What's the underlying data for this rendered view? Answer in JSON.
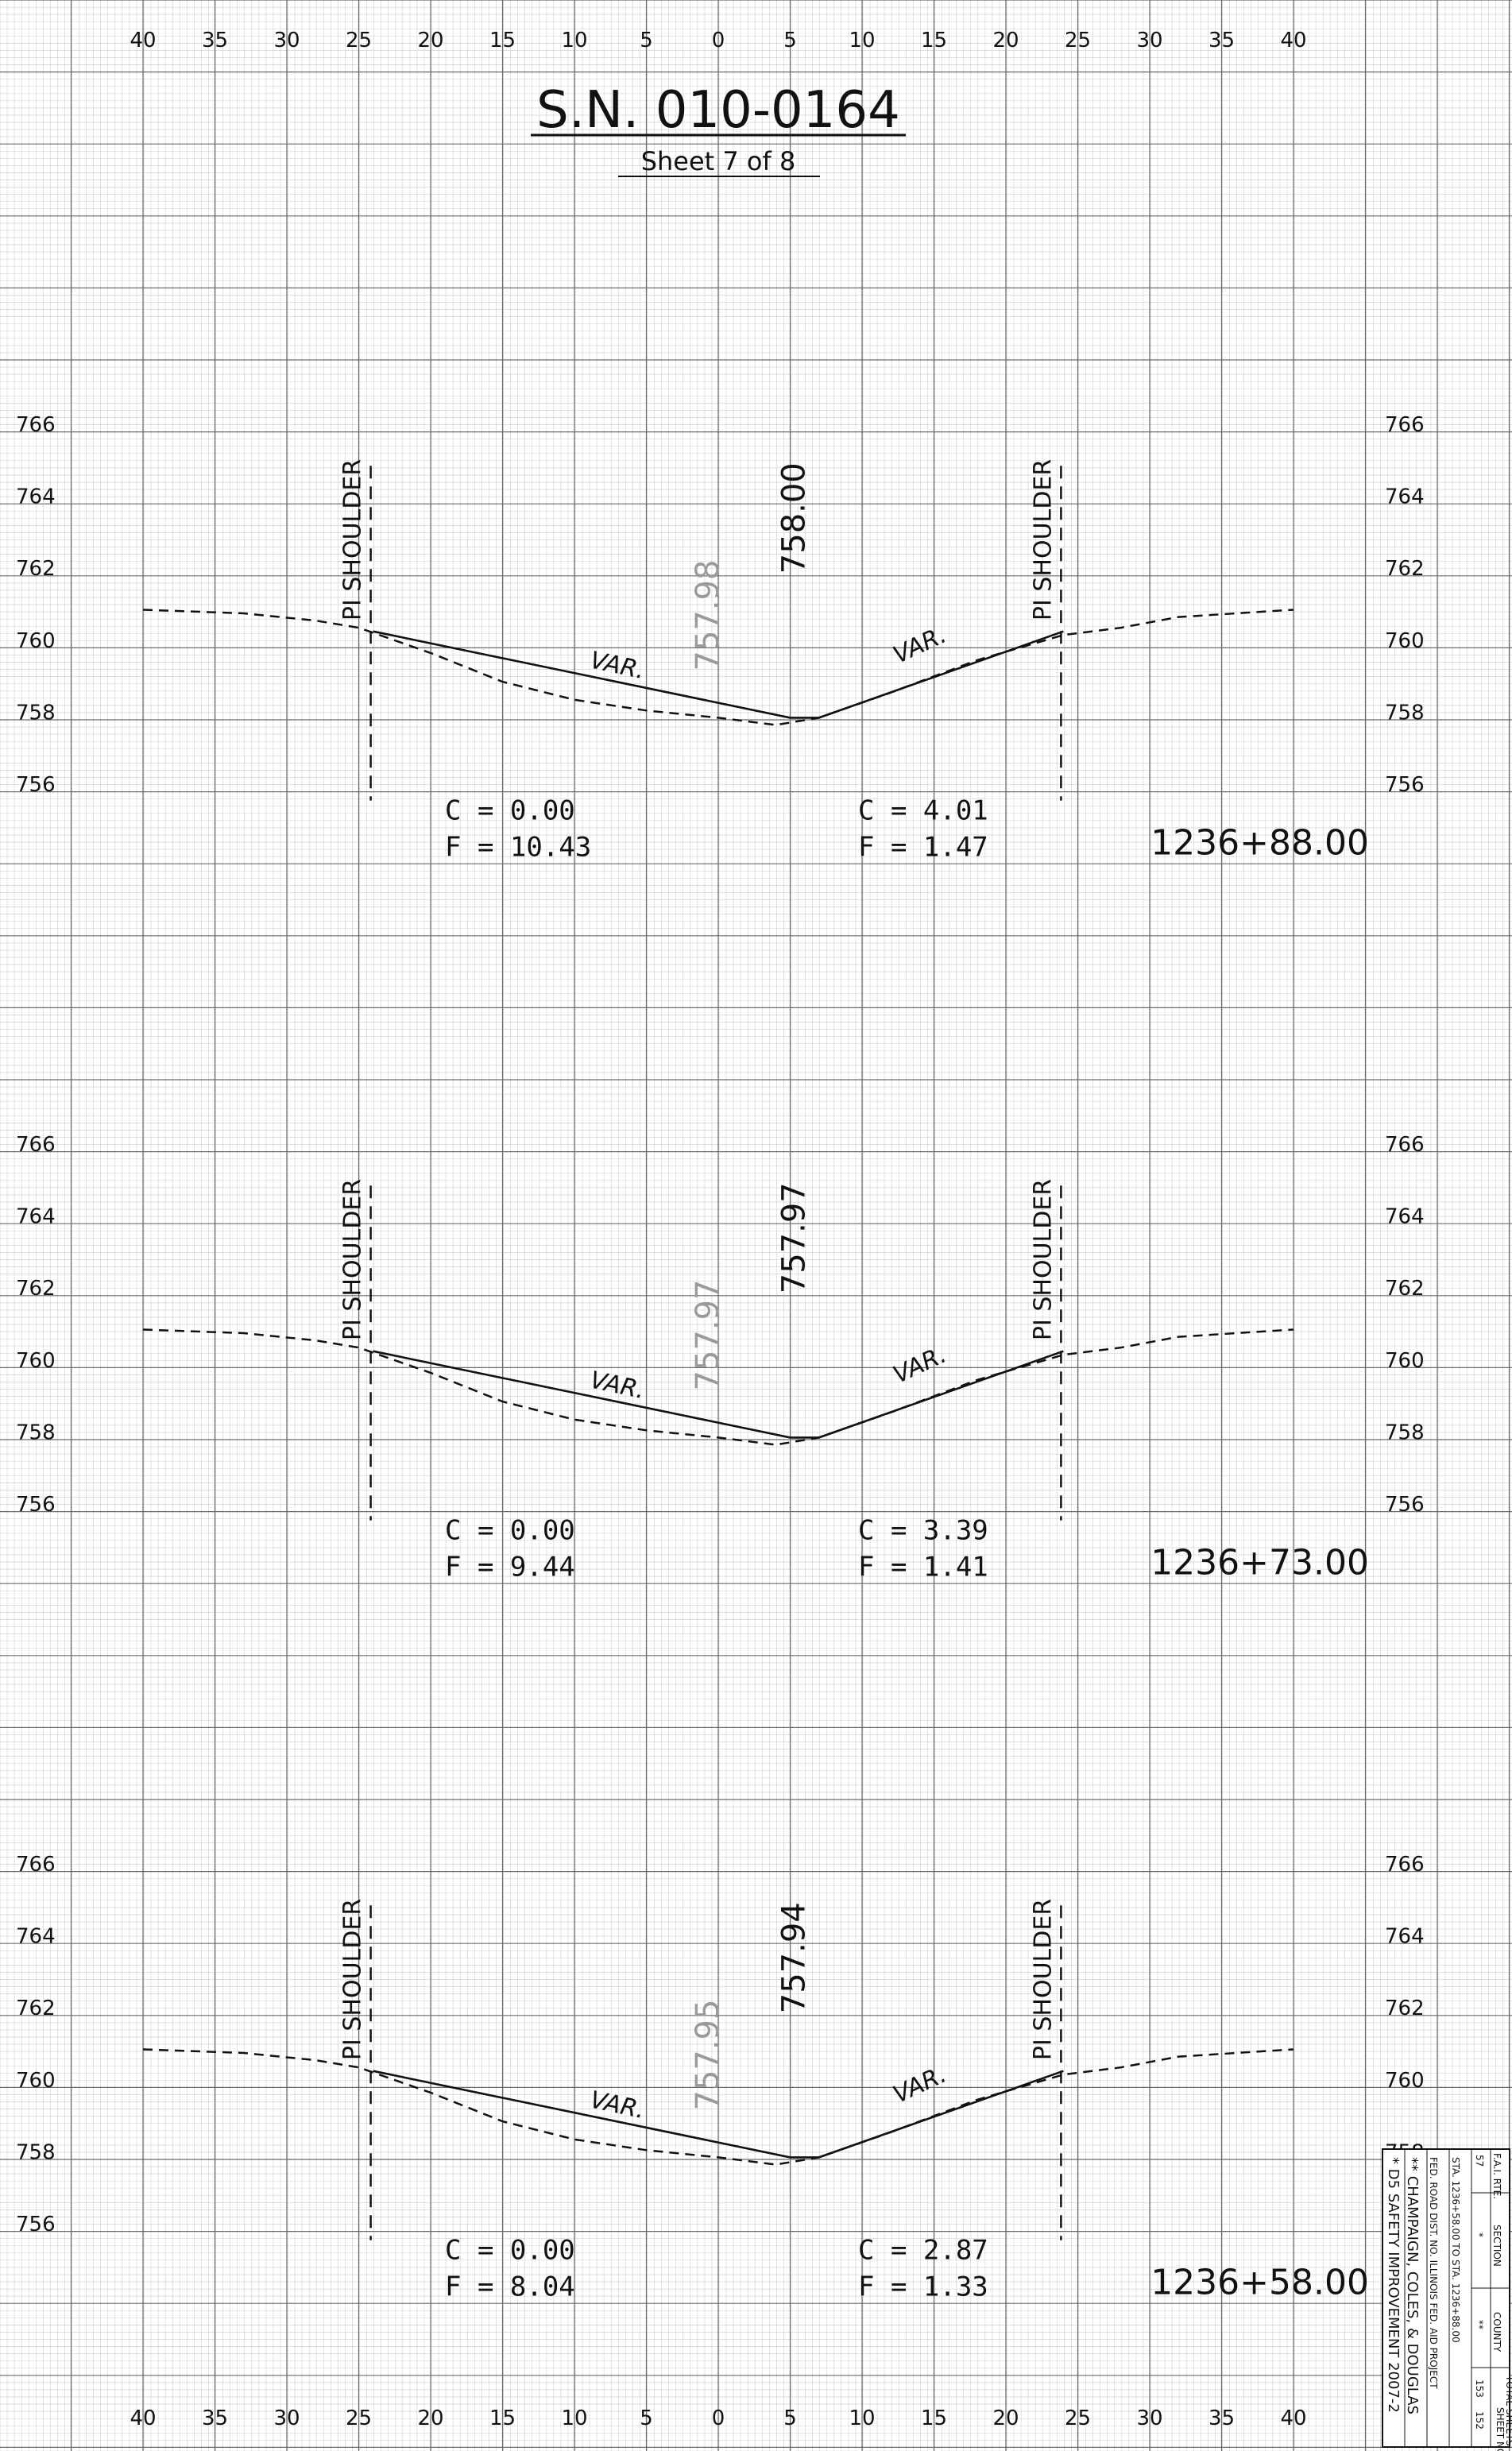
{
  "title": "S.N. 010-0164",
  "subtitle": "Sheet 7 of 8",
  "offset_labels": [
    "40",
    "35",
    "30",
    "25",
    "20",
    "15",
    "10",
    "5",
    "0",
    "5",
    "10",
    "15",
    "20",
    "25",
    "30",
    "35",
    "40"
  ],
  "elevation_labels": [
    "766",
    "764",
    "762",
    "760",
    "758",
    "756"
  ],
  "shoulder_label": "PI SHOULDER",
  "slope_label": "VAR.",
  "sections": [
    {
      "station": "1236+88.00",
      "proposed_elev": "758.00",
      "existing_elev": "757.98",
      "left": {
        "c": "C = 0.00",
        "f": "F = 10.43"
      },
      "right": {
        "c": "C = 4.01",
        "f": "F = 1.47"
      }
    },
    {
      "station": "1236+73.00",
      "proposed_elev": "757.97",
      "existing_elev": "757.97",
      "left": {
        "c": "C = 0.00",
        "f": "F = 9.44"
      },
      "right": {
        "c": "C = 3.39",
        "f": "F = 1.41"
      }
    },
    {
      "station": "1236+58.00",
      "proposed_elev": "757.94",
      "existing_elev": "757.95",
      "left": {
        "c": "C = 0.00",
        "f": "F = 8.04"
      },
      "right": {
        "c": "C = 2.87",
        "f": "F = 1.33"
      }
    }
  ],
  "title_block": {
    "fai_rte": "F.A.I. RTE.",
    "fai_value": "57",
    "section": "SECTION",
    "section_value": "*",
    "county": "COUNTY",
    "county_value": "**",
    "total_sheets": "TOTAL SHEETS",
    "total_value": "153",
    "sheet_no": "SHEET NO.",
    "sheet_value": "152",
    "station_range": "STA. 1236+58.00   TO STA. 1236+88.00",
    "fed_road": "FED. ROAD DIST. NO.   ILLINOIS  FED. AID PROJECT",
    "note1": "* D5 SAFETY IMPROVEMENT 2007-2",
    "note2": "** CHAMPAIGN, COLES, & DOUGLAS"
  }
}
